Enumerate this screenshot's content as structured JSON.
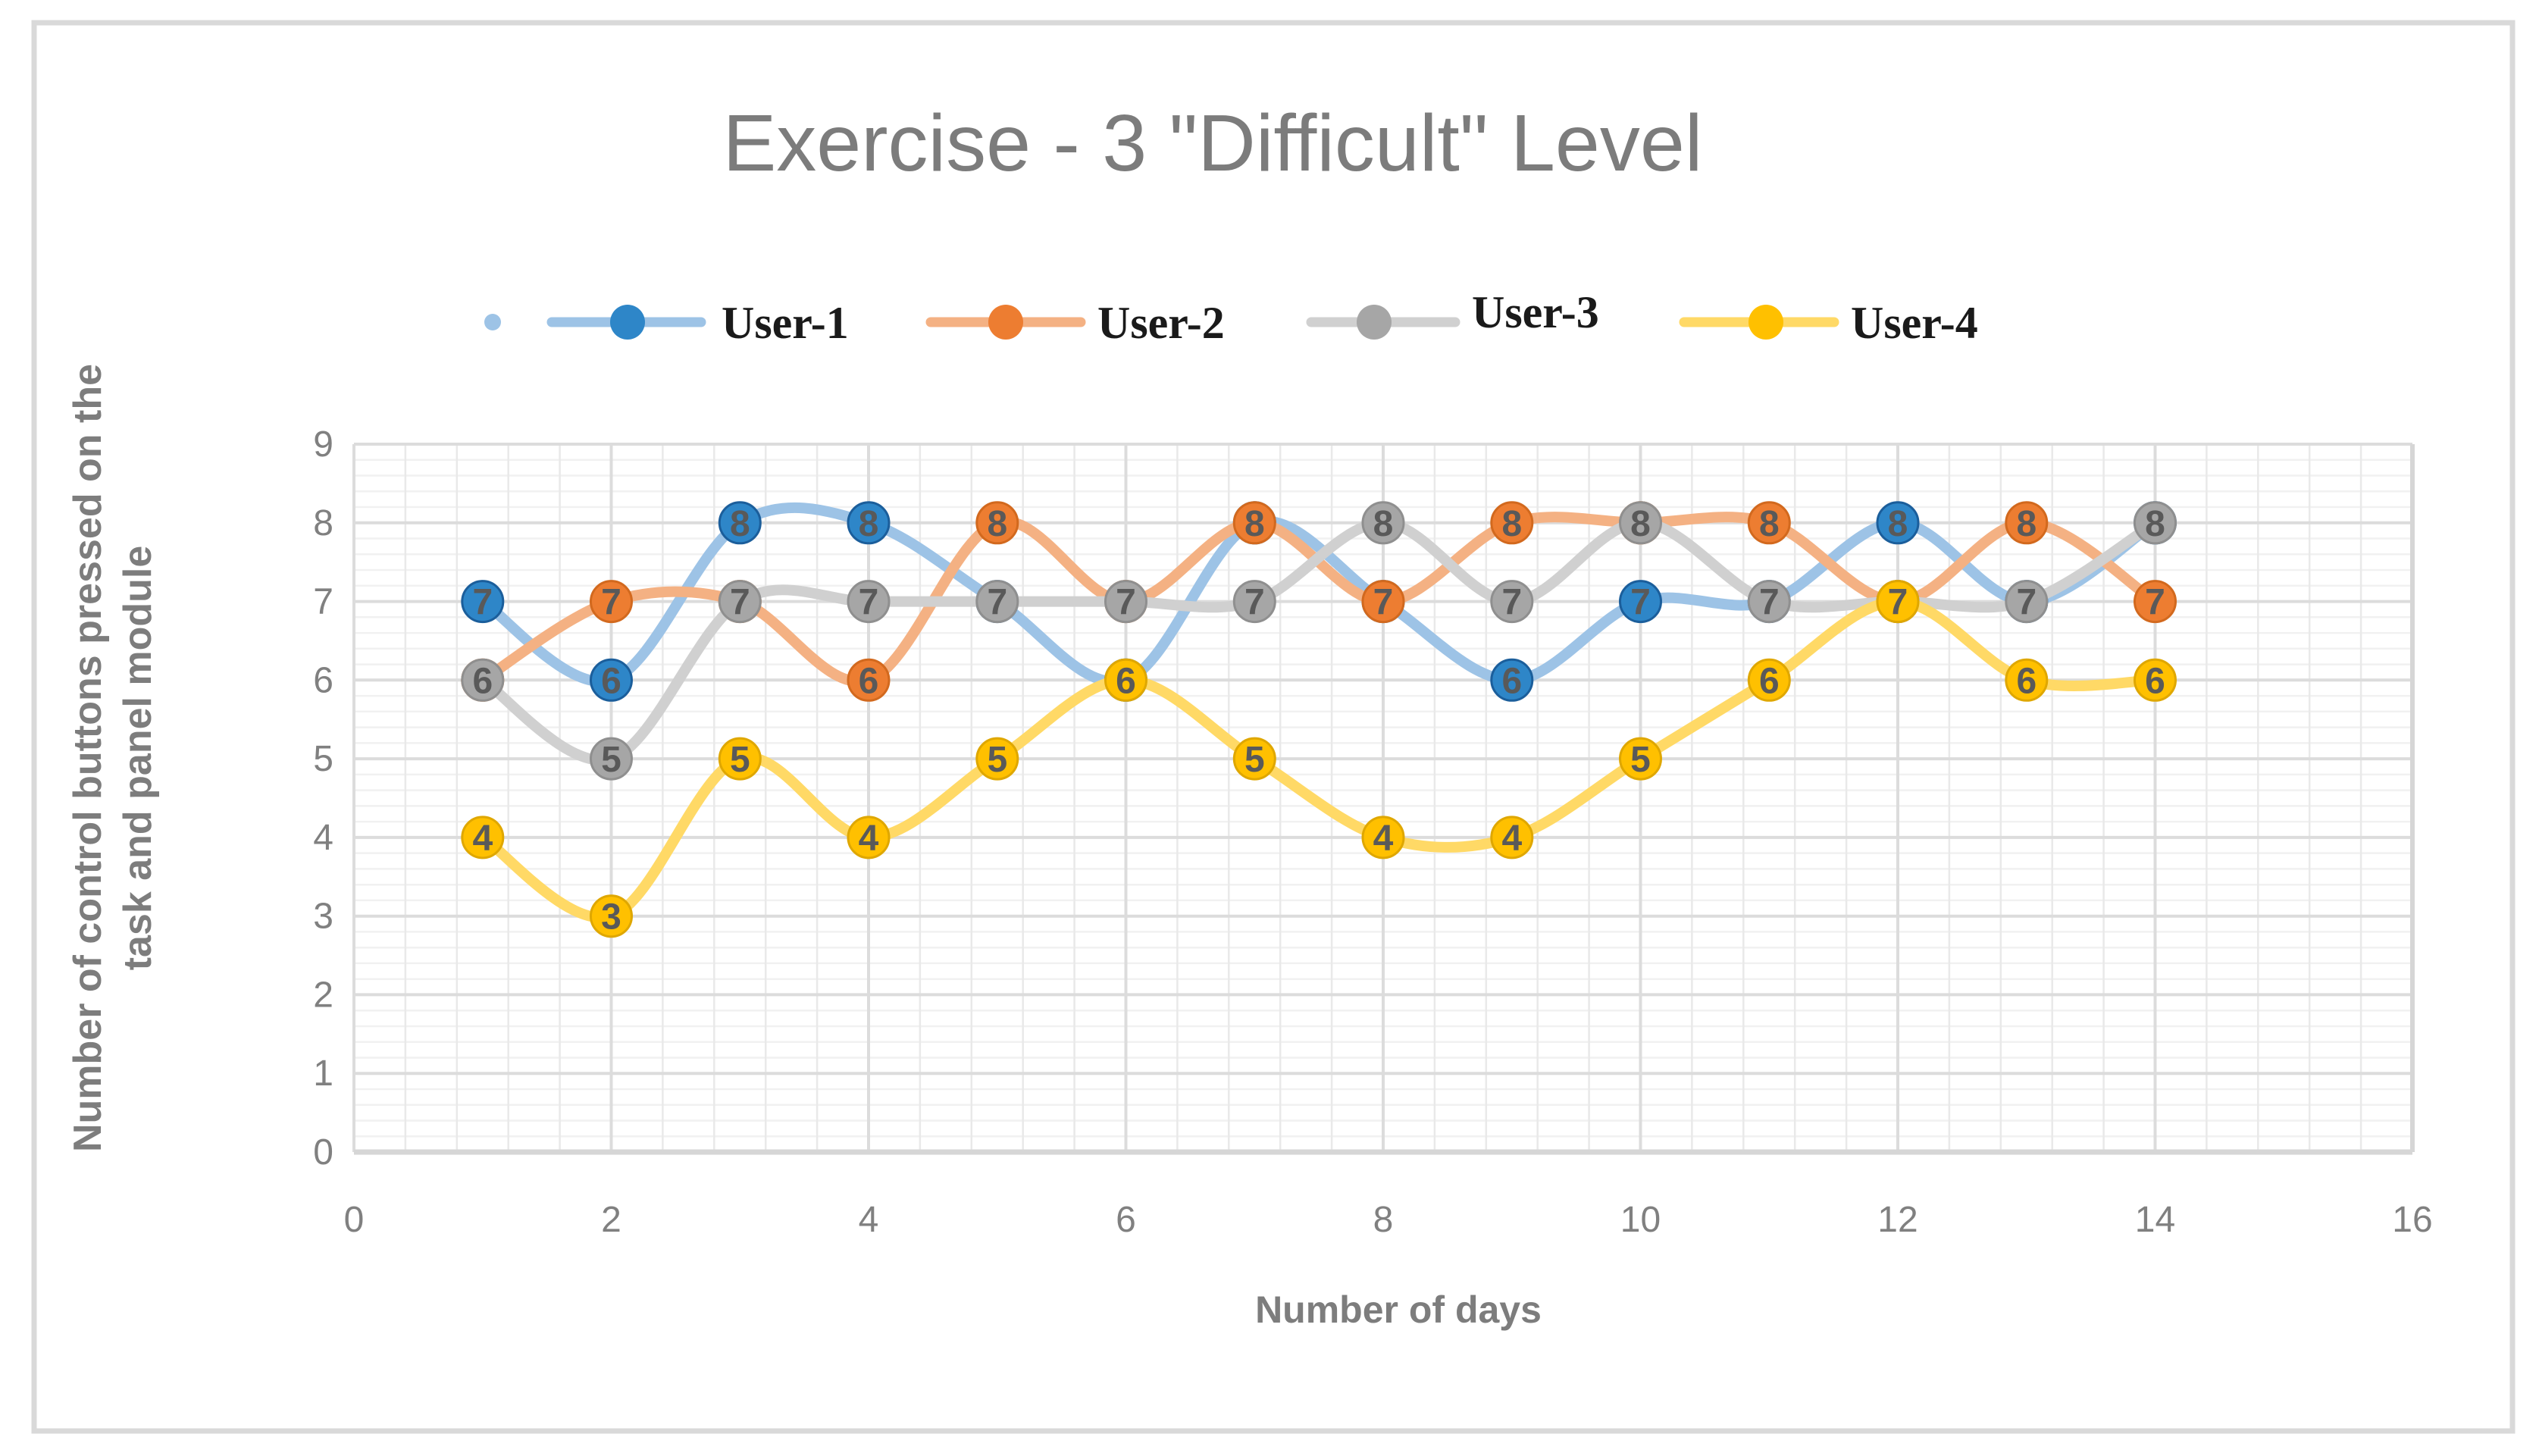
{
  "title": "Exercise - 3 \"Difficult\" Level",
  "legend": {
    "items": [
      "User-1",
      "User-2",
      "User-3",
      "User-4"
    ]
  },
  "x_axis": {
    "label": "Number of days",
    "min": 0,
    "max": 16,
    "ticks": [
      0,
      2,
      4,
      6,
      8,
      10,
      12,
      14,
      16
    ],
    "minor_step": 0.4
  },
  "y_axis": {
    "label_line1": "Number of control buttons pressed on the",
    "label_line2": "task and panel module",
    "min": 0,
    "max": 9,
    "ticks": [
      0,
      1,
      2,
      3,
      4,
      5,
      6,
      7,
      8,
      9
    ],
    "minor_step": 0.2
  },
  "chart_data": {
    "type": "line",
    "smooth": true,
    "data_labels_position": "center",
    "legend_position": "top",
    "grid": "major-and-minor",
    "x": [
      1,
      2,
      3,
      4,
      5,
      6,
      7,
      8,
      9,
      10,
      11,
      12,
      13,
      14
    ],
    "xlim": [
      0,
      16
    ],
    "ylim": [
      0,
      9
    ],
    "series": [
      {
        "name": "User-1",
        "values": [
          7,
          6,
          8,
          8,
          7,
          6,
          8,
          7,
          6,
          7,
          7,
          8,
          7,
          8
        ],
        "line_color": "#9DC3E6",
        "marker_color": "#2E86C8",
        "marker_edge_color": "#1B5E9B"
      },
      {
        "name": "User-2",
        "values": [
          6,
          7,
          7,
          6,
          8,
          7,
          8,
          7,
          8,
          8,
          8,
          7,
          8,
          7
        ],
        "line_color": "#F4B183",
        "marker_color": "#ED7D31",
        "marker_edge_color": "#D2691E"
      },
      {
        "name": "User-3",
        "values": [
          6,
          5,
          7,
          7,
          7,
          7,
          7,
          8,
          7,
          8,
          7,
          7,
          7,
          8
        ],
        "line_color": "#D0D0D0",
        "marker_color": "#A6A6A6",
        "marker_edge_color": "#8F8F8F"
      },
      {
        "name": "User-4",
        "values": [
          4,
          3,
          5,
          4,
          5,
          6,
          5,
          4,
          4,
          5,
          6,
          7,
          6,
          6
        ],
        "line_color": "#FFD966",
        "marker_color": "#FFC000",
        "marker_edge_color": "#DFA700"
      }
    ]
  },
  "colors": {
    "title_text": "#7c7c7c",
    "axis_title_text": "#7d7d7d",
    "tick_text": "#808080",
    "data_label_text": "#595959",
    "legend_text": "#1a1a1a",
    "grid_minor_h": "#f1f1f1",
    "grid_minor_v": "#e9e9e9",
    "grid_major": "#dcdcdc",
    "plot_border": "#d6d6d6",
    "figure_border": "#d9d9d9",
    "background": "#ffffff"
  }
}
